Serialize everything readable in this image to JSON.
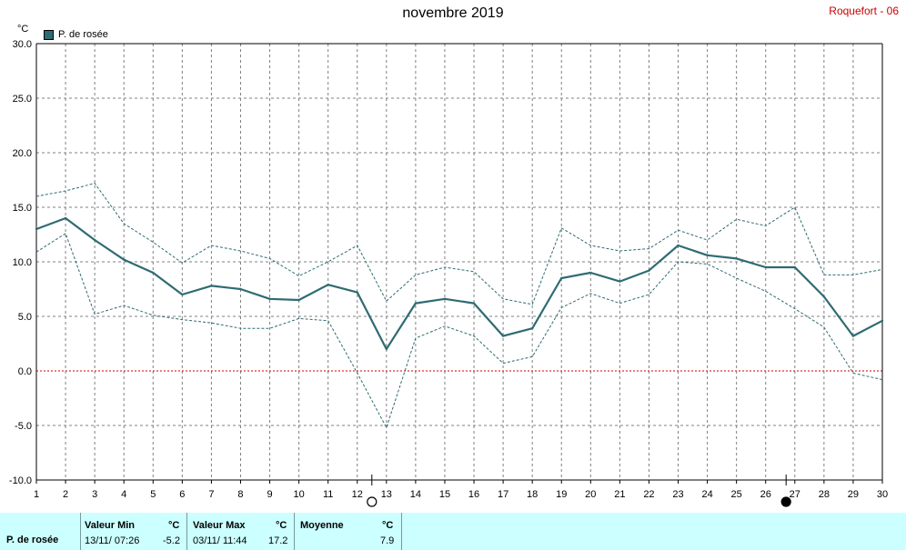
{
  "header": {
    "title": "novembre 2019",
    "station": "Roquefort - 06",
    "unit": "°C",
    "legend_label": "P. de rosée"
  },
  "colors": {
    "series": "#2e6b72",
    "grid": "#808080",
    "zero_line": "#cc0000",
    "panel_bg": "#ccffff"
  },
  "moon_phases": [
    {
      "day": 12.5,
      "icon": "full-moon-icon"
    },
    {
      "day": 26.7,
      "icon": "new-moon-icon"
    }
  ],
  "chart_data": {
    "type": "line",
    "x": [
      1,
      2,
      3,
      4,
      5,
      6,
      7,
      8,
      9,
      10,
      11,
      12,
      13,
      14,
      15,
      16,
      17,
      18,
      19,
      20,
      21,
      22,
      23,
      24,
      25,
      26,
      27,
      28,
      29,
      30
    ],
    "ylim": [
      -10,
      30
    ],
    "yticks": [
      "30.0",
      "25.0",
      "20.0",
      "15.0",
      "10.0",
      "5.0",
      "0.0",
      "-5.0",
      "-10.0"
    ],
    "grid": true,
    "legend": "top-left",
    "series": [
      {
        "name": "P. de rosée",
        "role": "mean",
        "values": [
          13.0,
          14.0,
          12.0,
          10.2,
          9.0,
          7.0,
          7.8,
          7.5,
          6.6,
          6.5,
          7.9,
          7.2,
          2.0,
          6.2,
          6.6,
          6.2,
          3.2,
          3.9,
          8.5,
          9.0,
          8.2,
          9.2,
          11.5,
          10.6,
          10.3,
          9.5,
          9.5,
          6.8,
          3.2,
          4.6
        ]
      },
      {
        "role": "max",
        "values": [
          16.0,
          16.5,
          17.2,
          13.5,
          11.8,
          9.9,
          11.5,
          11.0,
          10.3,
          8.7,
          10.0,
          11.5,
          6.4,
          8.8,
          9.5,
          9.1,
          6.6,
          6.1,
          13.1,
          11.5,
          11.0,
          11.2,
          12.9,
          12.0,
          13.9,
          13.3,
          15.0,
          8.8,
          8.8,
          9.3
        ]
      },
      {
        "role": "min",
        "values": [
          10.9,
          12.6,
          5.2,
          6.0,
          5.1,
          4.7,
          4.4,
          3.9,
          3.9,
          4.8,
          4.6,
          -0.2,
          -5.2,
          3.0,
          4.1,
          3.2,
          0.7,
          1.3,
          5.8,
          7.1,
          6.2,
          7.0,
          10.0,
          9.8,
          8.5,
          7.3,
          5.7,
          4.0,
          -0.2,
          -0.8
        ]
      }
    ]
  },
  "stats": {
    "row_label": "P. de rosée",
    "min_header": "Valeur Min",
    "min_unit": "°C",
    "min_date": "13/11/  07:26",
    "min_value": "-5.2",
    "max_header": "Valeur Max",
    "max_unit": "°C",
    "max_date": "03/11/  11:44",
    "max_value": "17.2",
    "avg_header": "Moyenne",
    "avg_unit": "°C",
    "avg_value": "7.9"
  }
}
